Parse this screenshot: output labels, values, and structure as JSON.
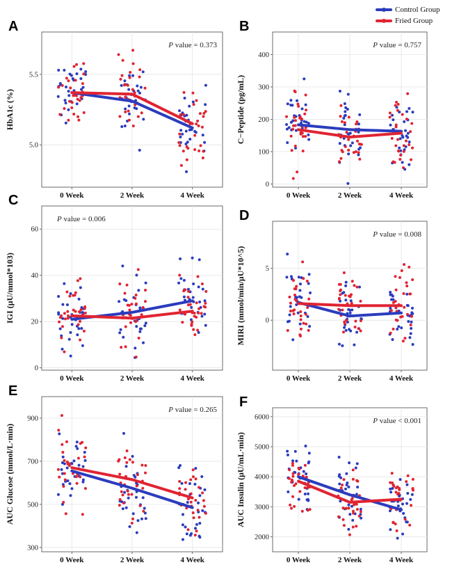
{
  "legend": {
    "items": [
      {
        "label": "Control Group",
        "color": "#2b3cbd"
      },
      {
        "label": "Fried Group",
        "color": "#e02432"
      }
    ]
  },
  "chart_data": [
    {
      "panel": "A",
      "type": "scatter",
      "ylabel": "HbA1c (%)",
      "xlabel": "",
      "categories": [
        "0 Week",
        "2 Week",
        "4 Week"
      ],
      "ylim": [
        4.7,
        5.8
      ],
      "yticks": [
        5.0,
        5.5
      ],
      "ytick_labels": [
        "5.0",
        "5.5"
      ],
      "annotation": "P value = 0.373",
      "annotation_position": "top-right",
      "series": [
        {
          "name": "Control Group",
          "values": [
            5.37,
            5.31,
            5.12
          ]
        },
        {
          "name": "Fried Group",
          "values": [
            5.37,
            5.36,
            5.15
          ]
        }
      ]
    },
    {
      "panel": "B",
      "type": "scatter",
      "ylabel": "C−Peptide (pg/mL)",
      "xlabel": "",
      "categories": [
        "0 Week",
        "2 Week",
        "4 Week"
      ],
      "ylim": [
        -10,
        470
      ],
      "yticks": [
        0,
        100,
        200,
        300,
        400
      ],
      "ytick_labels": [
        "0",
        "100",
        "200",
        "300",
        "400"
      ],
      "annotation": "P value = 0.757",
      "annotation_position": "top-right",
      "series": [
        {
          "name": "Control Group",
          "values": [
            183,
            168,
            163
          ]
        },
        {
          "name": "Fried Group",
          "values": [
            168,
            145,
            157
          ]
        }
      ]
    },
    {
      "panel": "C",
      "type": "scatter",
      "ylabel": "IGI (μU/mmol*103)",
      "xlabel": "",
      "categories": [
        "0 Week",
        "2 Week",
        "4 Week"
      ],
      "ylim": [
        -1,
        70
      ],
      "yticks": [
        0,
        20,
        40,
        60
      ],
      "ytick_labels": [
        "0",
        "20",
        "40",
        "60"
      ],
      "annotation": "P value = 0.006",
      "annotation_position": "top-left",
      "series": [
        {
          "name": "Control Group",
          "values": [
            21,
            24,
            29
          ]
        },
        {
          "name": "Fried Group",
          "values": [
            22.5,
            21.5,
            24.5
          ]
        }
      ]
    },
    {
      "panel": "D",
      "type": "scatter",
      "ylabel": "MIRI (mmol/min/μU*10^5)",
      "xlabel": "",
      "categories": [
        "0 Week",
        "2 Week",
        "4 Week"
      ],
      "ylim": [
        -4.8,
        9.5
      ],
      "yticks": [
        0,
        5
      ],
      "ytick_labels": [
        "0",
        "5"
      ],
      "annotation": "P value = 0.008",
      "annotation_position": "top-right",
      "series": [
        {
          "name": "Control Group",
          "values": [
            1.7,
            0.4,
            0.7
          ]
        },
        {
          "name": "Fried Group",
          "values": [
            1.6,
            1.4,
            1.4
          ]
        }
      ]
    },
    {
      "panel": "E",
      "type": "scatter",
      "ylabel": "AUC Glucose (mmol/L·min)",
      "xlabel": "",
      "categories": [
        "0 Week",
        "2 Week",
        "4 Week"
      ],
      "ylim": [
        280,
        1000
      ],
      "yticks": [
        300,
        500,
        700,
        900
      ],
      "ytick_labels": [
        "300",
        "500",
        "700",
        "900"
      ],
      "annotation": "P value = 0.265",
      "annotation_position": "top-right",
      "series": [
        {
          "name": "Control Group",
          "values": [
            655,
            575,
            485
          ]
        },
        {
          "name": "Fried Group",
          "values": [
            670,
            615,
            530
          ]
        }
      ]
    },
    {
      "panel": "F",
      "type": "scatter",
      "ylabel": "AUC Insulin (μU/mL·min)",
      "xlabel": "",
      "categories": [
        "0 Week",
        "2 Week",
        "4 Week"
      ],
      "ylim": [
        1500,
        6300
      ],
      "yticks": [
        2000,
        3000,
        4000,
        5000,
        6000
      ],
      "ytick_labels": [
        "2000",
        "3000",
        "4000",
        "5000",
        "6000"
      ],
      "annotation": "P value < 0.001",
      "annotation_position": "top-right",
      "series": [
        {
          "name": "Control Group",
          "values": [
            4000,
            3400,
            2900
          ]
        },
        {
          "name": "Fried Group",
          "values": [
            3850,
            3150,
            3250
          ]
        }
      ]
    }
  ]
}
